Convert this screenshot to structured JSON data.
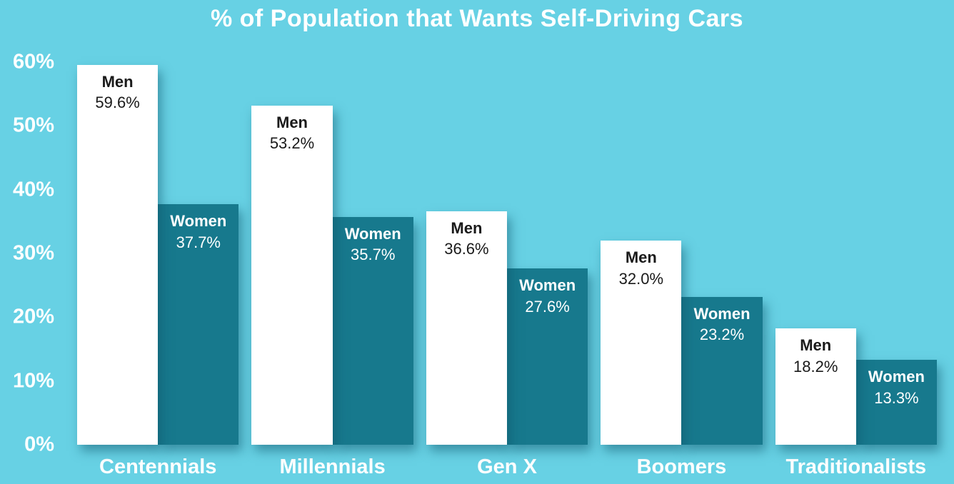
{
  "title": "% of Population that Wants Self-Driving Cars",
  "colors": {
    "background": "#67D1E4",
    "men_bar": "#FFFFFF",
    "women_bar": "#17798D",
    "men_text": "#1A1A1A",
    "women_text": "#FFFFFF",
    "axis_text": "#FFFFFF"
  },
  "chart_data": {
    "type": "bar",
    "title": "% of Population that Wants Self-Driving Cars",
    "categories": [
      "Centennials",
      "Millennials",
      "Gen X",
      "Boomers",
      "Traditionalists"
    ],
    "series": [
      {
        "name": "Men",
        "color": "#FFFFFF",
        "values": [
          59.6,
          53.2,
          36.6,
          32.0,
          18.2
        ]
      },
      {
        "name": "Women",
        "color": "#17798D",
        "values": [
          37.7,
          35.7,
          27.6,
          23.2,
          13.3
        ]
      }
    ],
    "value_label_format": "{value}%",
    "xlabel": "",
    "ylabel": "",
    "ylim": [
      0,
      60
    ],
    "y_ticks": [
      60,
      50,
      40,
      30,
      20,
      10,
      0
    ],
    "y_tick_labels": [
      "60%",
      "50%",
      "40%",
      "30%",
      "20%",
      "10%",
      "0%"
    ],
    "grid": false,
    "legend": "none (labels inside bars)"
  }
}
